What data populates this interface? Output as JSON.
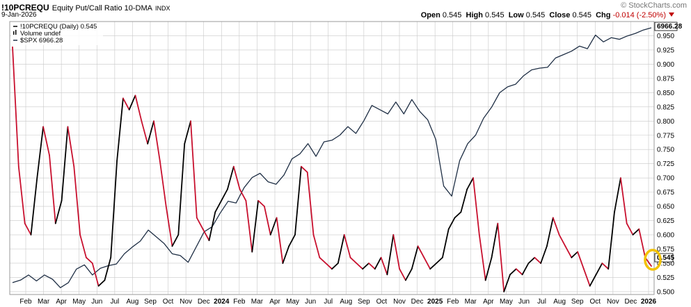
{
  "header": {
    "symbol": "!10PCREQU",
    "description": "Equity Put/Call Ratio 10-DMA",
    "index_tag": "INDX",
    "date": "9-Jan-2026",
    "brand": "© StockCharts.com",
    "ohlc": {
      "open_label": "Open",
      "open": "0.545",
      "high_label": "High",
      "high": "0.545",
      "low_label": "Low",
      "low": "0.545",
      "close_label": "Close",
      "close": "0.545",
      "chg_label": "Chg",
      "chg": "-0.014 (-2.50%)"
    }
  },
  "legend": {
    "line1": "!10PCREQU (Daily) 0.545",
    "line2": "Volume undef",
    "line3": "$SPX 6966.28"
  },
  "colors": {
    "pcr_high": "#c8102e",
    "pcr_low": "#000000",
    "spx": "#1f2f45",
    "grid": "#c8c8c8",
    "highlight": "#f2c200"
  },
  "chart_data": {
    "type": "line",
    "ylim": [
      0.495,
      0.975
    ],
    "y_ticks": [
      "0.950",
      "0.925",
      "0.900",
      "0.875",
      "0.850",
      "0.825",
      "0.800",
      "0.775",
      "0.750",
      "0.725",
      "0.700",
      "0.675",
      "0.650",
      "0.625",
      "0.600",
      "0.575",
      "0.550",
      "0.525",
      "0.500"
    ],
    "x_ticks": [
      "Feb",
      "Mar",
      "Apr",
      "May",
      "Jun",
      "Jul",
      "Aug",
      "Sep",
      "Oct",
      "Nov",
      "Dec",
      "2024",
      "Feb",
      "Mar",
      "Apr",
      "May",
      "Jun",
      "Jul",
      "Aug",
      "Sep",
      "Oct",
      "Nov",
      "Dec",
      "2025",
      "Feb",
      "Mar",
      "Apr",
      "May",
      "Jun",
      "Jul",
      "Aug",
      "Sep",
      "Oct",
      "Nov",
      "Dec",
      "2026"
    ],
    "last_value_labels": {
      "spx": "6966.28",
      "pcr": "0.545"
    },
    "series": [
      {
        "name": "!10PCREQU (Daily)",
        "values": [
          0.93,
          0.72,
          0.62,
          0.6,
          0.7,
          0.79,
          0.74,
          0.62,
          0.66,
          0.79,
          0.72,
          0.6,
          0.56,
          0.55,
          0.51,
          0.52,
          0.56,
          0.73,
          0.84,
          0.82,
          0.845,
          0.8,
          0.76,
          0.8,
          0.73,
          0.65,
          0.58,
          0.6,
          0.76,
          0.8,
          0.63,
          0.61,
          0.59,
          0.64,
          0.66,
          0.68,
          0.72,
          0.68,
          0.66,
          0.57,
          0.66,
          0.65,
          0.6,
          0.63,
          0.55,
          0.58,
          0.6,
          0.72,
          0.71,
          0.6,
          0.56,
          0.55,
          0.54,
          0.55,
          0.6,
          0.56,
          0.55,
          0.54,
          0.55,
          0.54,
          0.56,
          0.53,
          0.6,
          0.54,
          0.52,
          0.54,
          0.58,
          0.56,
          0.54,
          0.55,
          0.56,
          0.61,
          0.63,
          0.64,
          0.68,
          0.7,
          0.6,
          0.52,
          0.56,
          0.62,
          0.5,
          0.53,
          0.54,
          0.53,
          0.55,
          0.56,
          0.55,
          0.58,
          0.63,
          0.6,
          0.58,
          0.56,
          0.57,
          0.54,
          0.51,
          0.53,
          0.55,
          0.54,
          0.64,
          0.7,
          0.62,
          0.6,
          0.61,
          0.56,
          0.545
        ]
      },
      {
        "name": "$SPX",
        "values": [
          3960,
          3990,
          4050,
          3980,
          4050,
          4000,
          3900,
          3960,
          4120,
          4170,
          4050,
          4130,
          4160,
          4180,
          4300,
          4380,
          4450,
          4580,
          4500,
          4420,
          4300,
          4280,
          4200,
          4380,
          4560,
          4620,
          4780,
          4920,
          4900,
          5080,
          5200,
          5250,
          5150,
          5120,
          5230,
          5420,
          5480,
          5600,
          5450,
          5620,
          5640,
          5700,
          5800,
          5720,
          5870,
          6050,
          6000,
          5950,
          6090,
          5950,
          6120,
          5980,
          5880,
          5650,
          5100,
          4980,
          5400,
          5600,
          5700,
          5900,
          6030,
          6200,
          6270,
          6300,
          6400,
          6470,
          6490,
          6500,
          6610,
          6650,
          6690,
          6750,
          6720,
          6880,
          6800,
          6850,
          6830,
          6870,
          6900,
          6940,
          6966.28
        ]
      }
    ]
  }
}
